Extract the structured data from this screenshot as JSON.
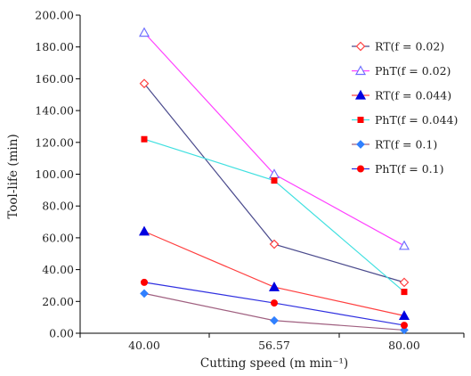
{
  "chart_data": {
    "type": "line",
    "xlabel": "Cutting speed (m min⁻¹)",
    "ylabel": "Tool-life (min)",
    "categories": [
      "40.00",
      "56.57",
      "80.00"
    ],
    "ylim": [
      0,
      200
    ],
    "yticks": [
      "0.00",
      "20.00",
      "40.00",
      "60.00",
      "80.00",
      "100.00",
      "120.00",
      "140.00",
      "160.00",
      "180.00",
      "200.00"
    ],
    "grid": false,
    "legend_position": "right",
    "series": [
      {
        "name": "RT(f = 0.02)",
        "values": [
          157,
          56,
          32
        ],
        "line_color": "#4a4a8c",
        "marker": "diamond-open",
        "marker_color": "#ff4040"
      },
      {
        "name": "PhT(f = 0.02)",
        "values": [
          189,
          100,
          55
        ],
        "line_color": "#ff40ff",
        "marker": "triangle-open",
        "marker_color": "#7070ff"
      },
      {
        "name": "RT(f = 0.044)",
        "values": [
          64,
          29,
          11
        ],
        "line_color": "#ff4040",
        "marker": "triangle",
        "marker_color": "#0000e0"
      },
      {
        "name": "PhT(f = 0.044)",
        "values": [
          122,
          96,
          26
        ],
        "line_color": "#40e0e0",
        "marker": "square",
        "marker_color": "#ff0000"
      },
      {
        "name": "RT(f = 0.1)",
        "values": [
          25,
          8,
          2
        ],
        "line_color": "#a06080",
        "marker": "diamond",
        "marker_color": "#3080ff"
      },
      {
        "name": "PhT(f = 0.1)",
        "values": [
          32,
          19,
          5
        ],
        "line_color": "#3030e0",
        "marker": "circle",
        "marker_color": "#ff0000"
      }
    ]
  }
}
